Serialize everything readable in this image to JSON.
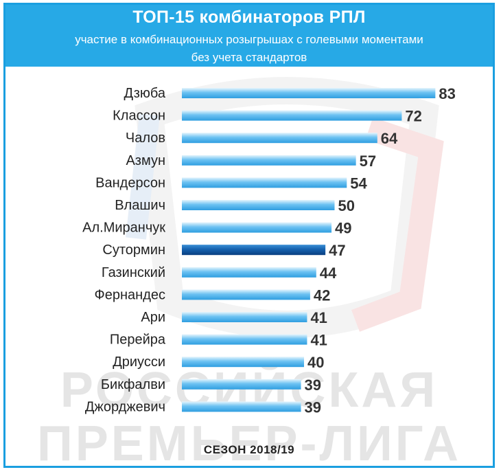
{
  "header": {
    "title": "ТОП-15 комбинаторов РПЛ",
    "subtitle_line1": "участие в комбинационных розыгрышах с голевыми моментами",
    "subtitle_line2": "без учета стандартов"
  },
  "watermark": {
    "line1": "РОССИЙСКАЯ",
    "line2": "ПРЕМЬЕР-ЛИГА"
  },
  "footer": {
    "season": "СЕЗОН 2018/19"
  },
  "colors": {
    "header_bg": "#27a9e6",
    "bar_light": "#6cc2f2",
    "bar_highlight": "#1561ae",
    "frame": "#1a9fe0"
  },
  "chart_data": {
    "type": "bar",
    "orientation": "horizontal",
    "categories": [
      "Дзюба",
      "Классон",
      "Чалов",
      "Азмун",
      "Вандерсон",
      "Влашич",
      "Ал.Миранчук",
      "Сутормин",
      "Газинский",
      "Фернандес",
      "Ари",
      "Перейра",
      "Дриусси",
      "Бикфалви",
      "Джорджевич"
    ],
    "values": [
      83,
      72,
      64,
      57,
      54,
      50,
      49,
      47,
      44,
      42,
      41,
      41,
      40,
      39,
      39
    ],
    "highlight": "Сутормин",
    "grid": false,
    "legend": "none"
  }
}
